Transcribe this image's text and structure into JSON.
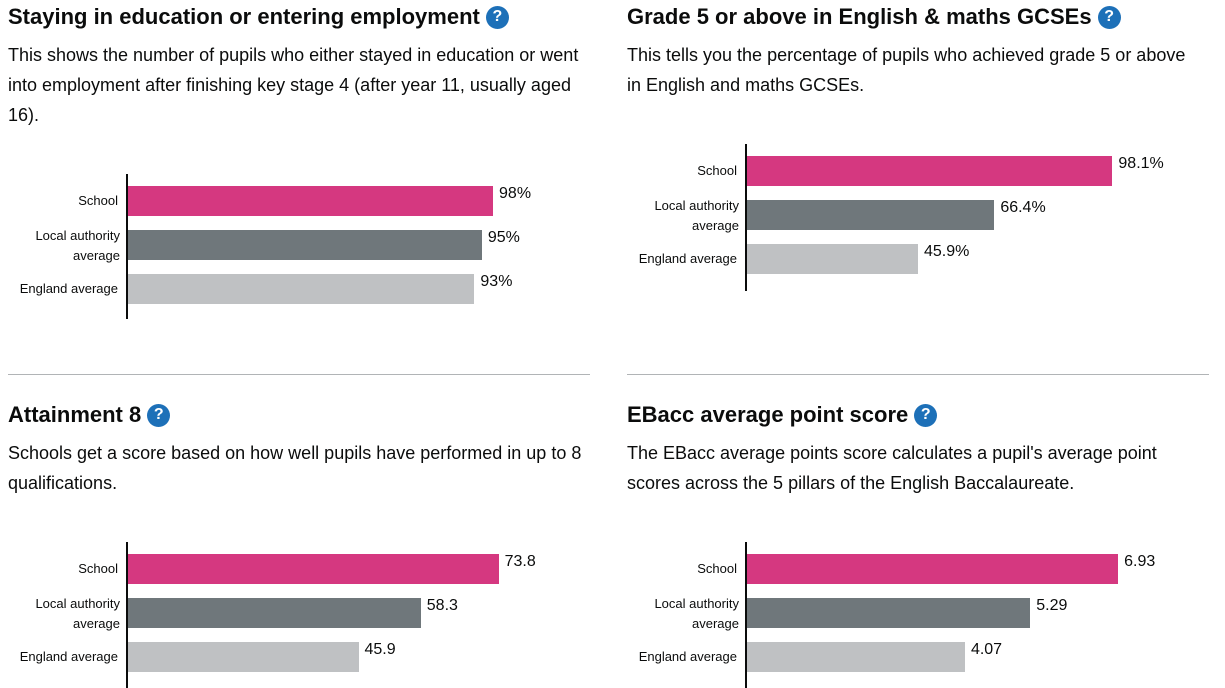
{
  "colors": {
    "school": "#d53880",
    "local_authority": "#6f777b",
    "england": "#bfc1c3",
    "help_icon": "#1d70b8"
  },
  "panels": {
    "staying": {
      "title": "Staying in education or entering employment",
      "description": "This shows the number of pupils who either stayed in education or went into employment after finishing key stage 4 (after year 11, usually aged 16).",
      "help_icon": "question-mark-icon"
    },
    "grade5": {
      "title": "Grade 5 or above in English & maths GCSEs",
      "description": "This tells you the percentage of pupils who achieved grade 5 or above in English and maths GCSEs.",
      "help_icon": "question-mark-icon"
    },
    "attainment8": {
      "title": "Attainment 8",
      "description": "Schools get a score based on how well pupils have performed in up to 8 qualifications.",
      "help_icon": "question-mark-icon"
    },
    "ebacc": {
      "title": "EBacc average point score",
      "description": "The EBacc average points score calculates a pupil's average point scores across the 5 pillars of the English Baccalaureate.",
      "help_icon": "question-mark-icon"
    }
  },
  "chart_data": [
    {
      "type": "bar",
      "categories": [
        "School",
        "Local authority average",
        "England average"
      ],
      "values": [
        98,
        95,
        93
      ],
      "value_labels": [
        "98%",
        "95%",
        "93%"
      ],
      "xlim": [
        0,
        123.5
      ]
    },
    {
      "type": "bar",
      "categories": [
        "School",
        "Local authority average",
        "England average"
      ],
      "values": [
        98.1,
        66.4,
        45.9
      ],
      "value_labels": [
        "98.1%",
        "66.4%",
        "45.9%"
      ],
      "xlim": [
        0,
        123.5
      ]
    },
    {
      "type": "bar",
      "categories": [
        "School",
        "Local authority average",
        "England average"
      ],
      "values": [
        73.8,
        58.3,
        45.9
      ],
      "value_labels": [
        "73.8",
        "58.3",
        "45.9"
      ],
      "xlim": [
        0,
        91.6
      ]
    },
    {
      "type": "bar",
      "categories": [
        "School",
        "Local authority average",
        "England average"
      ],
      "values": [
        6.93,
        5.29,
        4.07
      ],
      "value_labels": [
        "6.93",
        "5.29",
        "4.07"
      ],
      "xlim": [
        0,
        8.59
      ]
    }
  ]
}
